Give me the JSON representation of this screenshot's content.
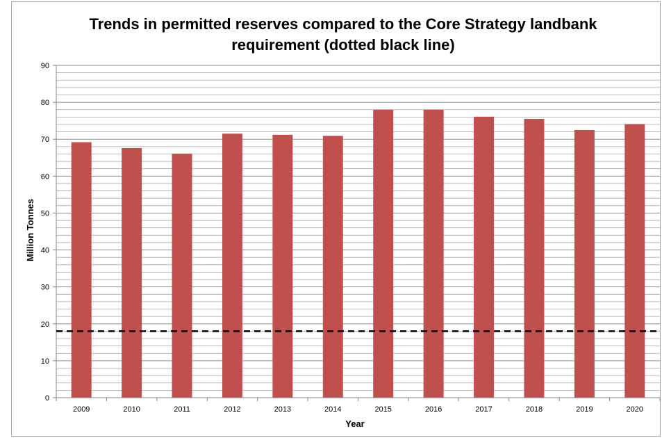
{
  "chart_data": {
    "type": "bar",
    "title_lines": [
      "Trends in permitted reserves compared to the Core Strategy landbank",
      "requirement (dotted black line)"
    ],
    "xlabel": "Year",
    "ylabel": "Million Tonnes",
    "categories": [
      "2009",
      "2010",
      "2011",
      "2012",
      "2013",
      "2014",
      "2015",
      "2016",
      "2017",
      "2018",
      "2019",
      "2020"
    ],
    "values": [
      69.2,
      67.6,
      66.1,
      71.5,
      71.2,
      70.9,
      78.0,
      78.0,
      76.1,
      75.5,
      72.5,
      74.1
    ],
    "ylim": [
      0,
      90
    ],
    "yticks": [
      0,
      10,
      20,
      30,
      40,
      50,
      60,
      70,
      80,
      90
    ],
    "minor_grid_step": 2,
    "grid": true,
    "reference_line": {
      "value": 18,
      "style": "dashed",
      "color": "#000000"
    },
    "bar_color": "#c0504d",
    "grid_color": "#a6a6a6"
  }
}
